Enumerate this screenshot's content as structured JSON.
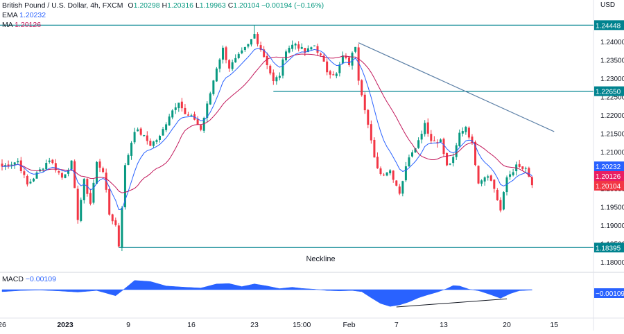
{
  "header": {
    "symbol": "British Pound / U.S. Dollar, 4h, FXCM",
    "open_label": "O",
    "open": "1.20298",
    "high_label": "H",
    "high": "1.20316",
    "low_label": "L",
    "low": "1.19963",
    "close_label": "C",
    "close": "1.20104",
    "change": "−0.00194 (−0.16%)",
    "ema_label": "EMA",
    "ema_value": "1.20232",
    "ma_label": "MA",
    "ma_value": "1.20126"
  },
  "macd_legend": {
    "label": "MACD",
    "value": "−0.00109"
  },
  "colors": {
    "up": "#089981",
    "down": "#f23645",
    "ema": "#2962ff",
    "ma": "#c2185b",
    "level": "#00838f",
    "trend": "#5b7fa6",
    "macd": "#2962ff",
    "badge_level": "#00838f",
    "badge_ema": "#2962ff",
    "badge_ma": "#e91e63",
    "badge_close": "#f23645"
  },
  "chart_data": {
    "type": "candlestick",
    "currency_label": "USD",
    "y_ticks": [
      "1.24000",
      "1.23500",
      "1.23000",
      "1.22500",
      "1.22000",
      "1.21500",
      "1.21000",
      "1.20500",
      "1.20000",
      "1.19500",
      "1.19000",
      "1.18500",
      "1.18000"
    ],
    "ylim": [
      1.1774,
      1.2468
    ],
    "x_labels": [
      "26",
      "2023",
      "9",
      "16",
      "23",
      "15:00",
      "Feb",
      "7",
      "13",
      "20",
      "15"
    ],
    "x_label_bars": [
      0,
      20,
      40,
      60,
      80,
      95,
      110,
      125,
      140,
      160,
      175
    ],
    "horizontal_levels": [
      {
        "value": 1.24448,
        "label": "1.24448",
        "from_bar": -1
      },
      {
        "value": 1.2265,
        "label": "1.22650",
        "from_bar": 86
      },
      {
        "value": 1.18395,
        "label": "1.18395",
        "from_bar": 37
      }
    ],
    "annotations": [
      {
        "text": "Neckline",
        "bar": 101,
        "value": 1.181
      }
    ],
    "trendline": {
      "from_bar": 113,
      "from_value": 1.2397,
      "to_bar": 175,
      "to_value": 1.2155
    },
    "price_badges": [
      {
        "value": 1.20232,
        "label": "1.20232",
        "kind": "ema"
      },
      {
        "value": 1.20126,
        "label": "1.20126",
        "kind": "ma"
      },
      {
        "value": 1.20104,
        "label": "1.20104",
        "kind": "close"
      }
    ],
    "anchors": [
      [
        0,
        1.206
      ],
      [
        5,
        1.2075
      ],
      [
        8,
        1.201
      ],
      [
        12,
        1.205
      ],
      [
        15,
        1.208
      ],
      [
        19,
        1.203
      ],
      [
        22,
        1.207
      ],
      [
        24,
        1.192
      ],
      [
        26,
        1.202
      ],
      [
        28,
        1.196
      ],
      [
        30,
        1.207
      ],
      [
        32,
        1.205
      ],
      [
        34,
        1.193
      ],
      [
        36,
        1.19
      ],
      [
        37,
        1.1845
      ],
      [
        39,
        1.206
      ],
      [
        42,
        1.216
      ],
      [
        44,
        1.215
      ],
      [
        47,
        1.212
      ],
      [
        50,
        1.214
      ],
      [
        53,
        1.22
      ],
      [
        56,
        1.224
      ],
      [
        58,
        1.22
      ],
      [
        61,
        1.219
      ],
      [
        63,
        1.216
      ],
      [
        66,
        1.226
      ],
      [
        68,
        1.233
      ],
      [
        70,
        1.238
      ],
      [
        72,
        1.233
      ],
      [
        75,
        1.236
      ],
      [
        78,
        1.239
      ],
      [
        80,
        1.242
      ],
      [
        82,
        1.238
      ],
      [
        84,
        1.234
      ],
      [
        86,
        1.229
      ],
      [
        88,
        1.231
      ],
      [
        90,
        1.238
      ],
      [
        93,
        1.2395
      ],
      [
        96,
        1.237
      ],
      [
        99,
        1.239
      ],
      [
        101,
        1.236
      ],
      [
        103,
        1.232
      ],
      [
        106,
        1.231
      ],
      [
        108,
        1.236
      ],
      [
        110,
        1.234
      ],
      [
        112,
        1.239
      ],
      [
        113,
        1.23
      ],
      [
        115,
        1.222
      ],
      [
        118,
        1.208
      ],
      [
        120,
        1.204
      ],
      [
        123,
        1.205
      ],
      [
        126,
        1.199
      ],
      [
        129,
        1.209
      ],
      [
        132,
        1.213
      ],
      [
        134,
        1.218
      ],
      [
        136,
        1.213
      ],
      [
        139,
        1.213
      ],
      [
        141,
        1.206
      ],
      [
        143,
        1.208
      ],
      [
        145,
        1.215
      ],
      [
        147,
        1.217
      ],
      [
        149,
        1.212
      ],
      [
        151,
        1.202
      ],
      [
        154,
        1.204
      ],
      [
        156,
        1.2
      ],
      [
        158,
        1.194
      ],
      [
        160,
        1.203
      ],
      [
        163,
        1.206
      ],
      [
        166,
        1.205
      ],
      [
        168,
        1.201
      ]
    ],
    "macd_anchors": [
      [
        0,
        -0.001
      ],
      [
        6,
        -0.0004
      ],
      [
        12,
        -0.0002
      ],
      [
        18,
        -0.0006
      ],
      [
        24,
        -0.0012
      ],
      [
        30,
        -0.0004
      ],
      [
        36,
        -0.003
      ],
      [
        38,
        -0.0006
      ],
      [
        42,
        0.0045
      ],
      [
        47,
        0.004
      ],
      [
        52,
        0.0018
      ],
      [
        58,
        0.0012
      ],
      [
        63,
        0.0008
      ],
      [
        68,
        0.0028
      ],
      [
        72,
        0.003
      ],
      [
        76,
        0.0015
      ],
      [
        80,
        0.0028
      ],
      [
        84,
        0.0018
      ],
      [
        88,
        0.0005
      ],
      [
        92,
        0.0012
      ],
      [
        95,
        0.0006
      ],
      [
        99,
        0.0002
      ],
      [
        103,
        -0.0004
      ],
      [
        107,
        -0.0006
      ],
      [
        111,
        -0.0004
      ],
      [
        114,
        -0.001
      ],
      [
        117,
        -0.004
      ],
      [
        120,
        -0.0068
      ],
      [
        123,
        -0.0082
      ],
      [
        126,
        -0.0075
      ],
      [
        129,
        -0.006
      ],
      [
        132,
        -0.004
      ],
      [
        135,
        -0.0025
      ],
      [
        138,
        -0.0012
      ],
      [
        141,
        0.0005
      ],
      [
        143,
        0.002
      ],
      [
        145,
        0.0018
      ],
      [
        148,
        0.0002
      ],
      [
        151,
        -0.0005
      ],
      [
        154,
        -0.002
      ],
      [
        158,
        -0.0042
      ],
      [
        161,
        -0.002
      ],
      [
        164,
        -0.0005
      ],
      [
        168,
        -0.0002
      ]
    ],
    "macd_trendline": {
      "from_bar": 125,
      "from_value": -0.0085,
      "to_bar": 160,
      "to_value": -0.0045
    },
    "macd_badge": "−0.00109"
  }
}
